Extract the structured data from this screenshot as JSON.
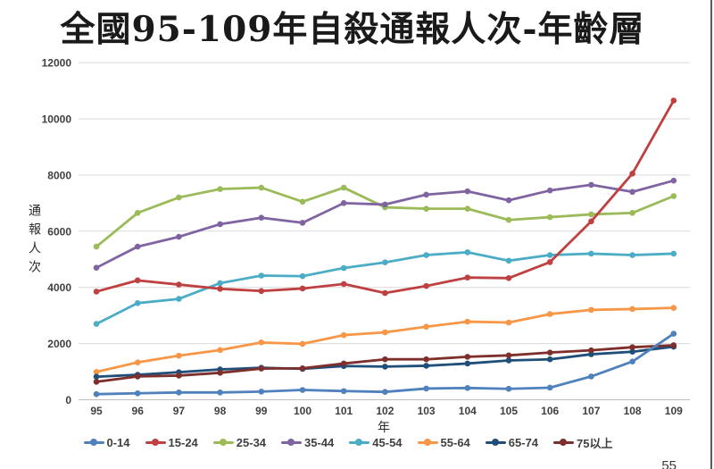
{
  "page": {
    "page_number": "55"
  },
  "chart_data": {
    "type": "line",
    "title": "全國95-109年自殺通報人次-年齡層",
    "xlabel": "年",
    "ylabel": "通報人次",
    "ylim": [
      0,
      12000
    ],
    "ytick_step": 2000,
    "yticks": [
      "0",
      "2000",
      "4000",
      "6000",
      "8000",
      "10000",
      "12000"
    ],
    "grid": true,
    "legend_position": "bottom",
    "categories": [
      "95",
      "96",
      "97",
      "98",
      "99",
      "100",
      "101",
      "102",
      "103",
      "104",
      "105",
      "106",
      "107",
      "108",
      "109"
    ],
    "series": [
      {
        "name": "0-14",
        "color": "#4F81BD",
        "values": [
          200,
          230,
          260,
          260,
          290,
          350,
          310,
          280,
          400,
          420,
          390,
          430,
          830,
          1360,
          2350
        ]
      },
      {
        "name": "15-24",
        "color": "#BF4040",
        "values": [
          3850,
          4250,
          4100,
          3950,
          3870,
          3960,
          4120,
          3800,
          4050,
          4350,
          4330,
          4900,
          6350,
          8050,
          10650
        ]
      },
      {
        "name": "25-34",
        "color": "#9BBB59",
        "values": [
          5450,
          6650,
          7200,
          7500,
          7550,
          7050,
          7550,
          6850,
          6800,
          6800,
          6400,
          6500,
          6600,
          6650,
          7250
        ]
      },
      {
        "name": "35-44",
        "color": "#8064A2",
        "values": [
          4700,
          5450,
          5800,
          6250,
          6480,
          6300,
          7000,
          6950,
          7300,
          7420,
          7100,
          7450,
          7650,
          7400,
          7800
        ]
      },
      {
        "name": "45-54",
        "color": "#4BACC6",
        "values": [
          2700,
          3440,
          3590,
          4150,
          4420,
          4400,
          4690,
          4890,
          5150,
          5250,
          4950,
          5150,
          5200,
          5150,
          5200
        ]
      },
      {
        "name": "55-64",
        "color": "#F79646",
        "values": [
          990,
          1330,
          1570,
          1770,
          2040,
          1990,
          2300,
          2400,
          2600,
          2780,
          2750,
          3050,
          3200,
          3230,
          3270
        ]
      },
      {
        "name": "65-74",
        "color": "#1F4E79",
        "values": [
          820,
          890,
          980,
          1080,
          1140,
          1100,
          1200,
          1180,
          1210,
          1290,
          1400,
          1440,
          1620,
          1710,
          1890
        ]
      },
      {
        "name": "75以上",
        "color": "#7E2F2B",
        "values": [
          640,
          830,
          860,
          960,
          1110,
          1120,
          1290,
          1440,
          1440,
          1530,
          1580,
          1680,
          1760,
          1870,
          1940
        ]
      }
    ]
  }
}
